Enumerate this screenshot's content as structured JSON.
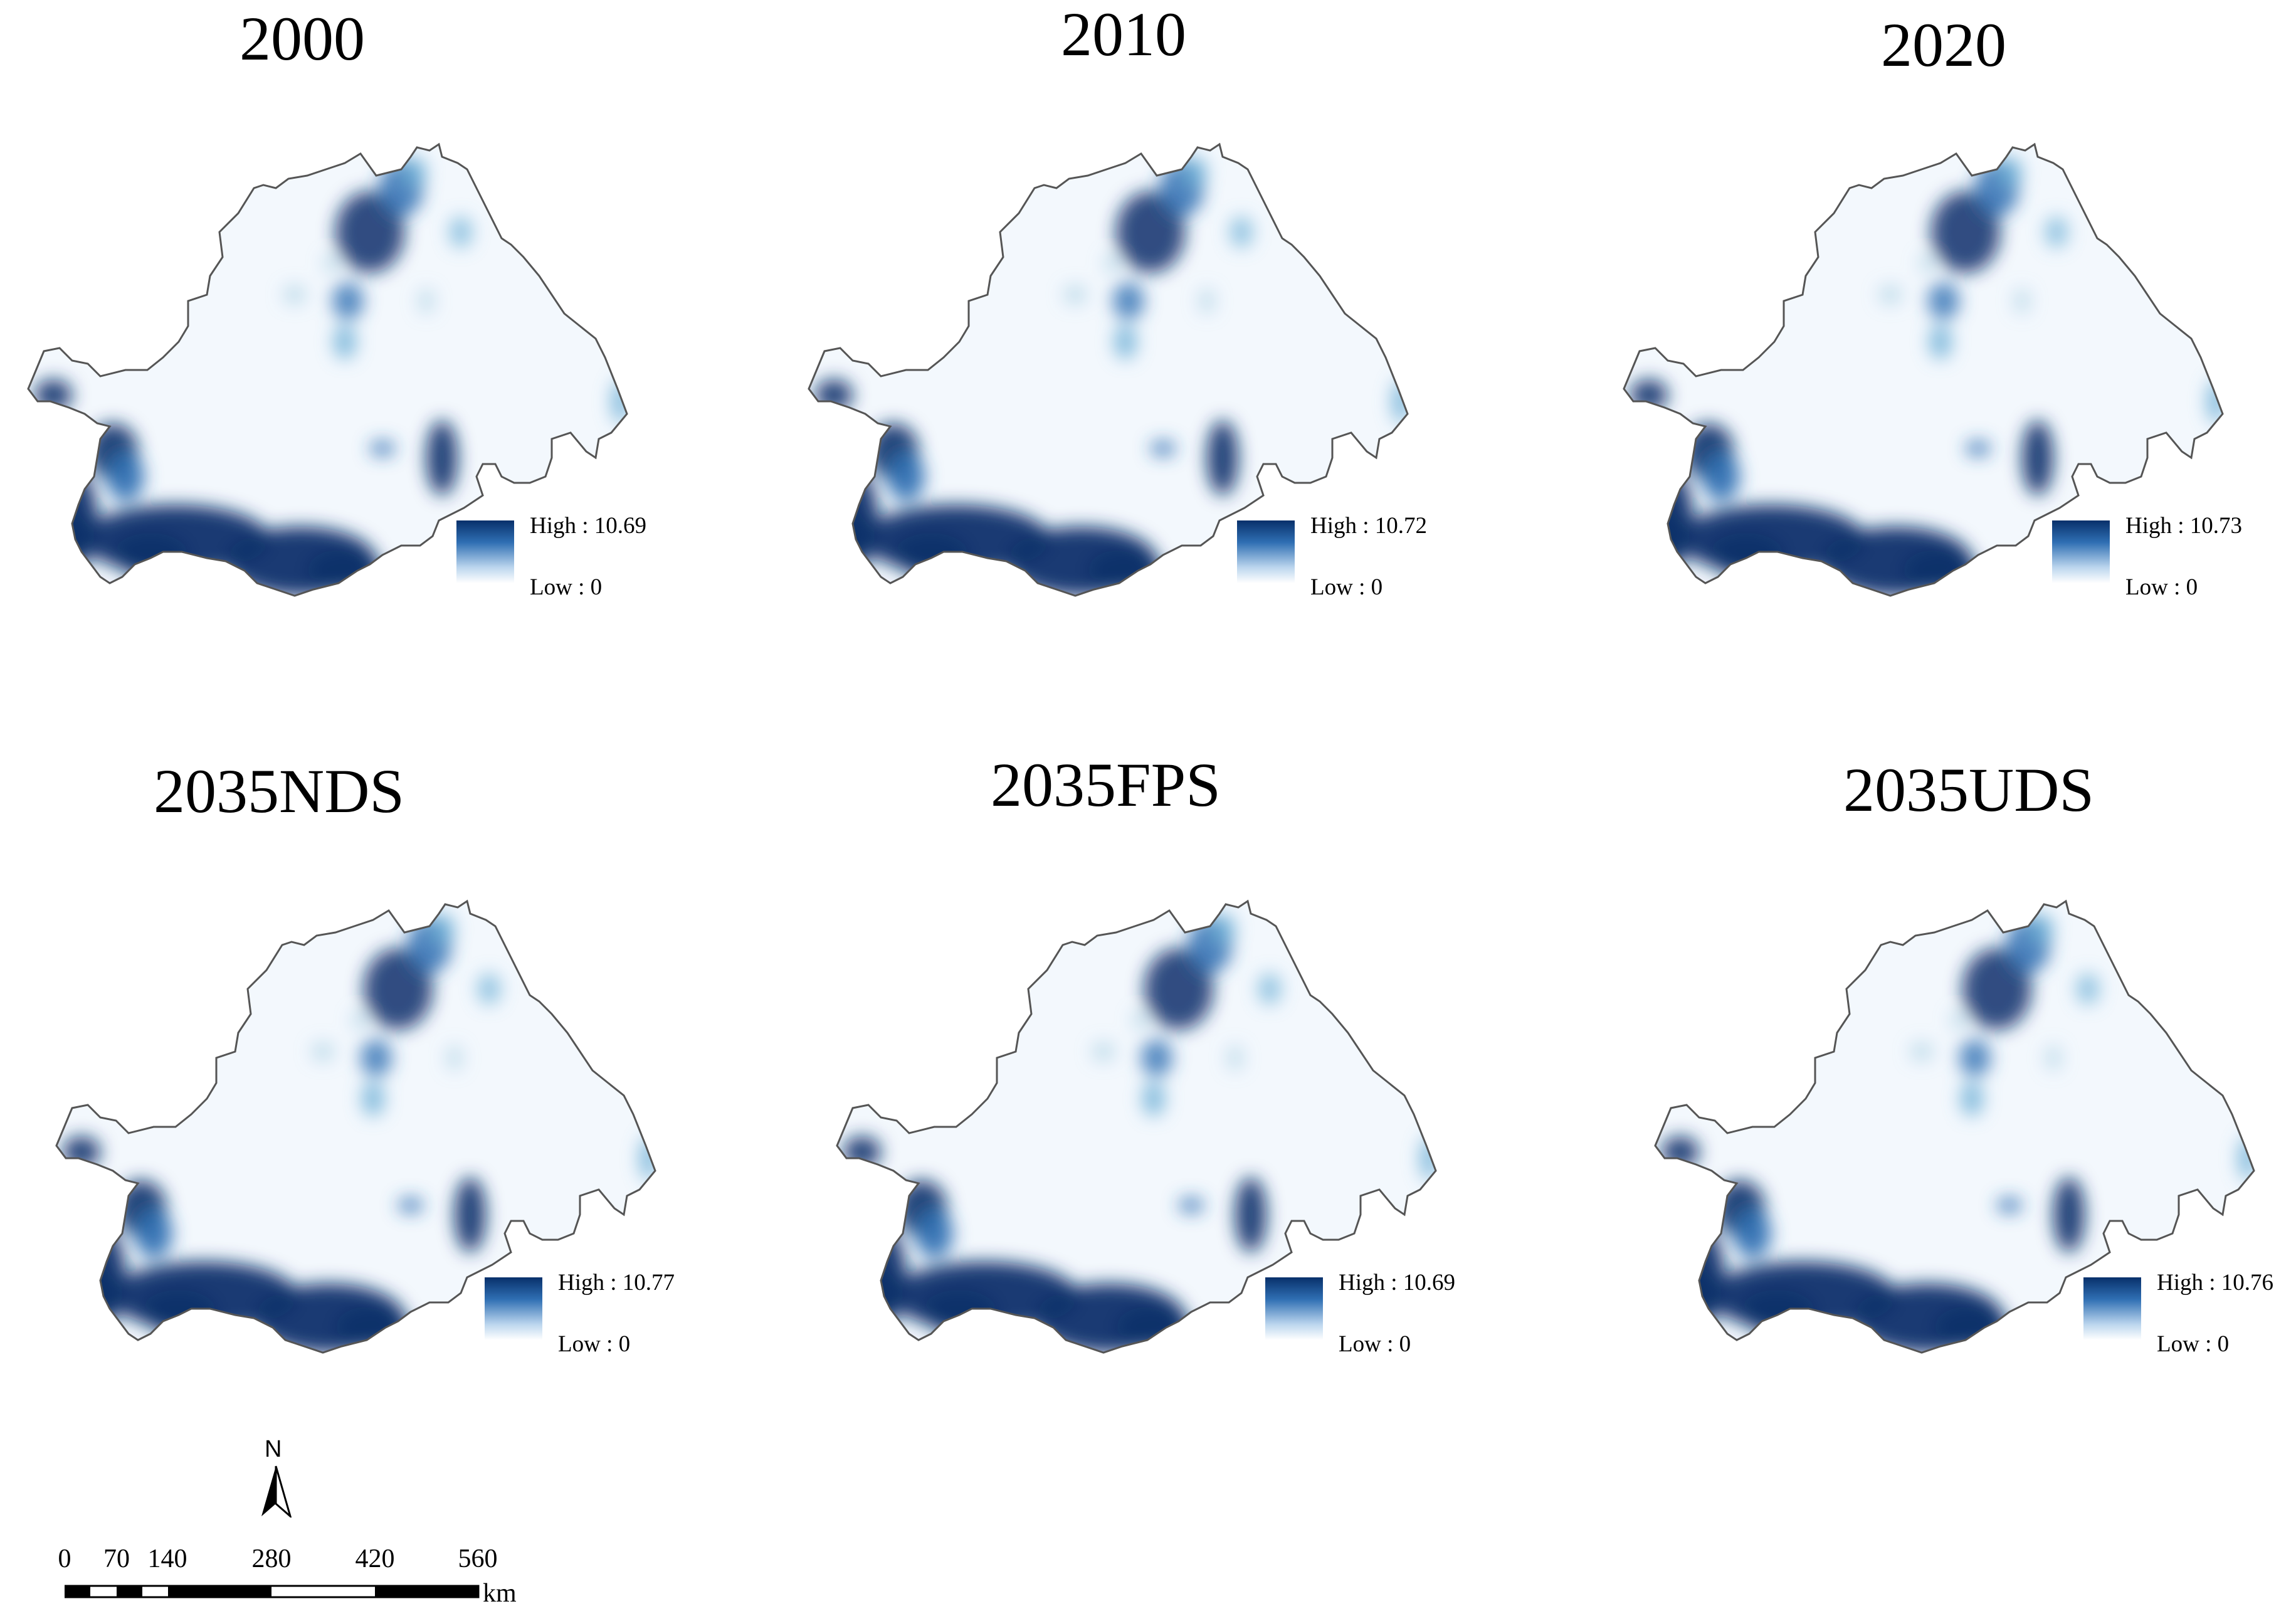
{
  "panels": [
    {
      "title": "2000",
      "legend": {
        "high_label": "High : 10.69",
        "low_label": "Low : 0"
      }
    },
    {
      "title": "2010",
      "legend": {
        "high_label": "High : 10.72",
        "low_label": "Low : 0"
      }
    },
    {
      "title": "2020",
      "legend": {
        "high_label": "High : 10.73",
        "low_label": "Low : 0"
      }
    },
    {
      "title": "2035NDS",
      "legend": {
        "high_label": "High : 10.77",
        "low_label": "Low : 0"
      }
    },
    {
      "title": "2035FPS",
      "legend": {
        "high_label": "High : 10.69",
        "low_label": "Low : 0"
      }
    },
    {
      "title": "2035UDS",
      "legend": {
        "high_label": "High : 10.76",
        "low_label": "Low : 0"
      }
    }
  ],
  "colors": {
    "high": "#08306b",
    "mid": "#2f6fb3",
    "light": "#bcd6ee",
    "low": "#ffffff",
    "outline": "#555555"
  },
  "north_arrow": {
    "label": "N"
  },
  "scale_bar": {
    "labels": [
      "0",
      "70",
      "140",
      "280",
      "420",
      "560"
    ],
    "unit": "km"
  }
}
